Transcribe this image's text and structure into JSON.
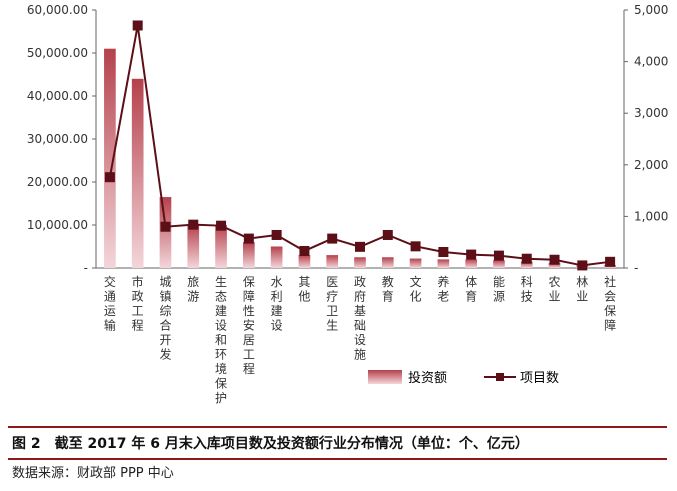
{
  "chart_data": {
    "type": "bar",
    "categories": [
      "交通运输",
      "市政工程",
      "城镇综合开发",
      "旅游",
      "生态建设和环境保护",
      "保障性安居工程",
      "水利建设",
      "其他",
      "医疗卫生",
      "政府基础设施",
      "教育",
      "文化",
      "养老",
      "体育",
      "能源",
      "科技",
      "农业",
      "林业",
      "社会保障"
    ],
    "series": [
      {
        "name": "投资额",
        "axis": "left",
        "type": "bar",
        "values": [
          51000,
          44000,
          16500,
          10000,
          10000,
          6000,
          5000,
          3000,
          3000,
          2500,
          2500,
          2200,
          2000,
          2000,
          1800,
          1500,
          1200,
          600,
          700
        ]
      },
      {
        "name": "项目数",
        "axis": "right",
        "type": "line",
        "values": [
          1760,
          4700,
          800,
          840,
          820,
          570,
          640,
          330,
          570,
          410,
          640,
          420,
          310,
          260,
          240,
          180,
          160,
          50,
          120
        ]
      }
    ],
    "left_axis": {
      "ylim": [
        0,
        60000
      ],
      "ticks": [
        "60,000.00",
        "50,000.00",
        "40,000.00",
        "30,000.00",
        "20,000.00",
        "10,000.00",
        "-"
      ]
    },
    "right_axis": {
      "ylim": [
        0,
        5000
      ],
      "ticks": [
        "5,000",
        "4,000",
        "3,000",
        "2,000",
        "1,000",
        "-"
      ]
    },
    "legend_position": "bottom-right",
    "colors": {
      "bar_top": "#b5414c",
      "bar_bottom": "#f3d6da",
      "line": "#5c0f16",
      "axis": "#666666"
    }
  },
  "caption": {
    "figure_label": "图 2",
    "title": "截至 2017 年 6 月末入库项目数及投资额行业分布情况（单位：个、亿元）"
  },
  "source": "数据来源：财政部 PPP 中心"
}
